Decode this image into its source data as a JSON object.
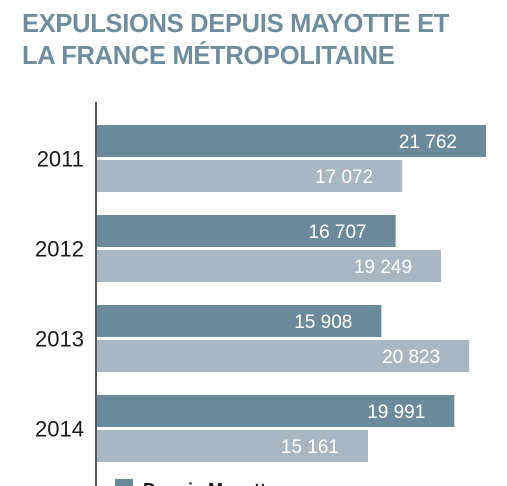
{
  "title": {
    "line1": "EXPULSIONS DEPUIS MAYOTTE ET",
    "line2": "LA FRANCE MÉTROPOLITAINE"
  },
  "colors": {
    "title": "#6e8ea0",
    "series_dark": "#6b8b9d",
    "series_light": "#a8b7c1",
    "axis": "#222222"
  },
  "chart_data": {
    "type": "bar",
    "orientation": "horizontal",
    "title": "EXPULSIONS DEPUIS MAYOTTE ET LA FRANCE MÉTROPOLITAINE",
    "categories": [
      "2011",
      "2012",
      "2013",
      "2014"
    ],
    "series": [
      {
        "name": "Depuis Mayotte",
        "values": [
          21762,
          16707,
          15908,
          19991
        ],
        "labels": [
          "21 762",
          "16 707",
          "15 908",
          "19 991"
        ]
      },
      {
        "name": "",
        "values": [
          17072,
          19249,
          20823,
          15161
        ],
        "labels": [
          "17 072",
          "19 249",
          "20 823",
          "15 161"
        ]
      }
    ],
    "xlim": [
      0,
      21762
    ],
    "grid": false,
    "legend": "bottom-left"
  }
}
